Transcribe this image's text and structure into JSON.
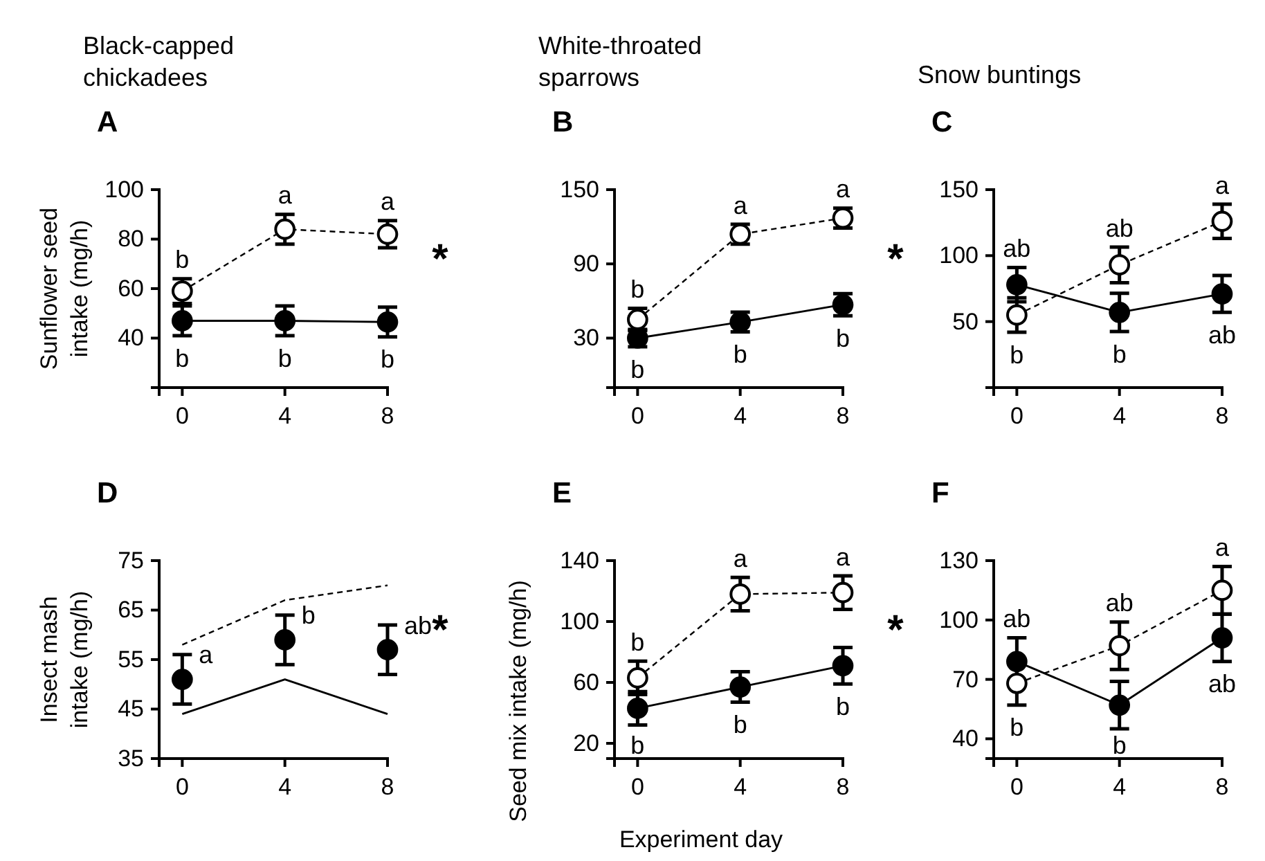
{
  "chart_data": [
    {
      "type": "line",
      "title": "Black-capped chickadees",
      "subtitle": "A",
      "ylabel": "Sunflower seed intake (mg/h)",
      "x": [
        0,
        4,
        8
      ],
      "xlim": [
        -0.9,
        8
      ],
      "xticks": [
        0,
        4,
        8
      ],
      "ylim": [
        20,
        100
      ],
      "yticks": [
        40,
        60,
        80,
        100
      ],
      "marker": "circle",
      "series": [
        {
          "color": "#ffffff",
          "line_style": "dashed",
          "values": [
            59,
            84,
            82
          ],
          "errors": [
            5,
            6,
            5.5
          ],
          "value_labels": [
            "b",
            "a",
            "a"
          ]
        },
        {
          "color": "#000000",
          "line_style": "solid",
          "values": [
            47,
            47,
            46.5
          ],
          "errors": [
            6,
            6,
            6
          ],
          "value_labels": [
            "b",
            "b",
            "b"
          ]
        }
      ],
      "annotations": [
        "*"
      ]
    },
    {
      "type": "line",
      "title": "White-throated sparrows",
      "subtitle": "B",
      "x": [
        0,
        4,
        8
      ],
      "xlim": [
        -0.9,
        8
      ],
      "xticks": [
        0,
        4,
        8
      ],
      "ylim": [
        -10,
        150
      ],
      "yticks": [
        30,
        90,
        150
      ],
      "marker": "circle",
      "series": [
        {
          "color": "#ffffff",
          "line_style": "dashed",
          "values": [
            45,
            114,
            127
          ],
          "errors": [
            9,
            8,
            8
          ],
          "value_labels": [
            "b",
            "a",
            "a"
          ]
        },
        {
          "color": "#000000",
          "line_style": "solid",
          "values": [
            30,
            43,
            57
          ],
          "errors": [
            7,
            8,
            9
          ],
          "value_labels": [
            "b",
            "b",
            "b"
          ]
        }
      ],
      "annotations": [
        "*"
      ]
    },
    {
      "type": "line",
      "title": "Snow buntings",
      "subtitle": "C",
      "x": [
        0,
        4,
        8
      ],
      "xlim": [
        -0.9,
        8
      ],
      "xticks": [
        0,
        4,
        8
      ],
      "ylim": [
        0,
        150
      ],
      "yticks": [
        50,
        100,
        150
      ],
      "marker": "circle",
      "series": [
        {
          "color": "#ffffff",
          "line_style": "dashed",
          "values": [
            55,
            93,
            126
          ],
          "errors": [
            13,
            13.5,
            13
          ],
          "value_labels": [
            "b",
            "ab",
            "a"
          ]
        },
        {
          "color": "#000000",
          "line_style": "solid",
          "values": [
            78,
            57,
            71
          ],
          "errors": [
            13,
            14.5,
            14
          ],
          "value_labels": [
            "ab",
            "b",
            "ab"
          ]
        }
      ]
    },
    {
      "type": "line",
      "subtitle": "D",
      "ylabel": "Insect mash intake (mg/h)",
      "x": [
        0,
        4,
        8
      ],
      "xlim": [
        -0.9,
        8
      ],
      "xticks": [
        0,
        4,
        8
      ],
      "ylim": [
        35,
        75
      ],
      "yticks": [
        35,
        45,
        55,
        65,
        75
      ],
      "series": [
        {
          "color": "#000000",
          "line_style": "dashed",
          "marker": "none",
          "values": [
            58,
            67,
            70
          ]
        },
        {
          "color": "#000000",
          "line_style": "solid",
          "marker": "none",
          "values": [
            44,
            51,
            44
          ]
        },
        {
          "type": "scatter",
          "color": "#000000",
          "marker": "circle",
          "values": [
            51,
            59,
            57
          ],
          "errors": [
            5,
            5,
            5
          ],
          "value_labels": [
            "a",
            "b",
            "ab"
          ]
        }
      ],
      "annotations": [
        "*"
      ]
    },
    {
      "type": "line",
      "subtitle": "E",
      "ylabel": "Seed mix intake (mg/h)",
      "xlabel": "Experiment day",
      "x": [
        0,
        4,
        8
      ],
      "xlim": [
        -0.9,
        8
      ],
      "xticks": [
        0,
        4,
        8
      ],
      "ylim": [
        10,
        140
      ],
      "yticks": [
        20,
        60,
        100,
        140
      ],
      "marker": "circle",
      "series": [
        {
          "color": "#ffffff",
          "line_style": "dashed",
          "values": [
            63,
            118,
            119
          ],
          "errors": [
            11,
            11,
            11
          ],
          "value_labels": [
            "b",
            "a",
            "a"
          ]
        },
        {
          "color": "#000000",
          "line_style": "solid",
          "values": [
            43,
            57,
            71
          ],
          "errors": [
            11,
            10,
            12
          ],
          "value_labels": [
            "b",
            "b",
            "b"
          ]
        }
      ],
      "annotations": [
        "*"
      ]
    },
    {
      "type": "line",
      "subtitle": "F",
      "x": [
        0,
        4,
        8
      ],
      "xlim": [
        -0.9,
        8
      ],
      "xticks": [
        0,
        4,
        8
      ],
      "ylim": [
        30,
        130
      ],
      "yticks": [
        40,
        70,
        100,
        130
      ],
      "marker": "circle",
      "series": [
        {
          "color": "#ffffff",
          "line_style": "dashed",
          "values": [
            68,
            87,
            115
          ],
          "errors": [
            11,
            12,
            12
          ],
          "value_labels": [
            "b",
            "ab",
            "a"
          ]
        },
        {
          "color": "#000000",
          "line_style": "solid",
          "values": [
            79,
            57,
            91
          ],
          "errors": [
            12,
            12,
            12
          ],
          "value_labels": [
            "ab",
            "b",
            "ab"
          ]
        }
      ]
    }
  ]
}
